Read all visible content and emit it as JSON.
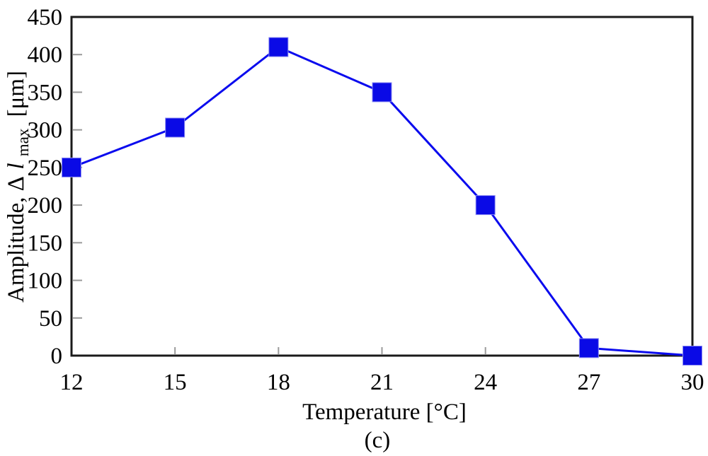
{
  "figure": {
    "caption": "(c)"
  },
  "chart_data": {
    "type": "line",
    "title": "",
    "xlabel": "Temperature [°C]",
    "ylabel": "Amplitude, Δl_max [μm]",
    "ylabel_parts": {
      "prefix": "Amplitude, Δ",
      "variable": "l",
      "subscript": "max",
      "units": "[μm]"
    },
    "x": [
      12,
      15,
      18,
      21,
      24,
      27,
      30
    ],
    "values": [
      250,
      303,
      410,
      350,
      200,
      10,
      0
    ],
    "xlim": [
      12,
      30
    ],
    "ylim": [
      0,
      450
    ],
    "x_ticks": [
      12,
      15,
      18,
      21,
      24,
      27,
      30
    ],
    "y_ticks": [
      0,
      50,
      100,
      150,
      200,
      250,
      300,
      350,
      400,
      450
    ],
    "grid": false,
    "legend": "none",
    "marker": "square",
    "line_color": "#0b0bee",
    "marker_color": "#0a0ae6",
    "axis_color": "#1a1a1a",
    "tick_color": "#9a9a9a",
    "text_color": "#000000"
  }
}
